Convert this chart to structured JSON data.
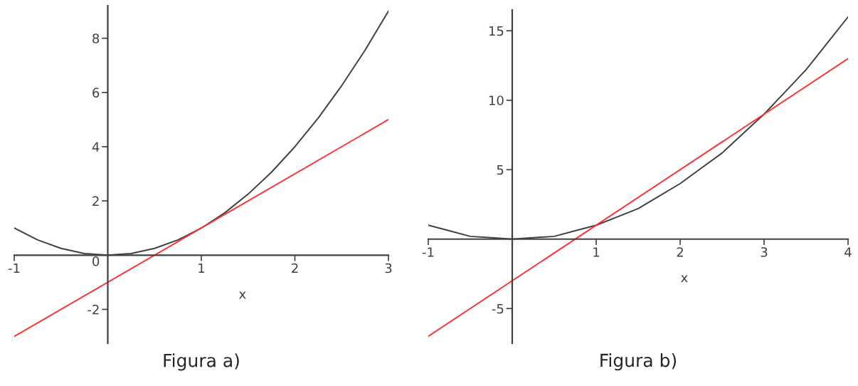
{
  "chart_data": [
    {
      "type": "line",
      "title": "Figura a)",
      "xlabel": "x",
      "xlim": [
        -1,
        3
      ],
      "ylim": [
        -3.25,
        9.2
      ],
      "xticks": [
        -1,
        1,
        2,
        3
      ],
      "yticks": [
        -2,
        0,
        2,
        4,
        6,
        8
      ],
      "grid": false,
      "legend": false,
      "series": [
        {
          "color": "#404040",
          "x": [
            -1,
            -0.75,
            -0.5,
            -0.25,
            0,
            0.25,
            0.5,
            0.75,
            1,
            1.25,
            1.5,
            1.75,
            2,
            2.25,
            2.5,
            2.75,
            3
          ],
          "values": [
            1,
            0.56,
            0.25,
            0.06,
            0,
            0.06,
            0.25,
            0.56,
            1,
            1.56,
            2.25,
            3.06,
            4,
            5.06,
            6.25,
            7.56,
            9
          ]
        },
        {
          "color": "#ff3030",
          "x": [
            -1,
            3
          ],
          "values": [
            -3,
            5
          ]
        }
      ]
    },
    {
      "type": "line",
      "title": "Figura b)",
      "xlabel": "x",
      "xlim": [
        -1,
        4
      ],
      "ylim": [
        -7.5,
        16.5
      ],
      "xticks": [
        -1,
        1,
        2,
        3,
        4
      ],
      "yticks": [
        -5,
        5,
        10,
        15
      ],
      "grid": false,
      "legend": false,
      "series": [
        {
          "color": "#404040",
          "x": [
            -1,
            -0.75,
            -0.5,
            -0.25,
            0,
            0.25,
            0.5,
            0.75,
            1,
            1.25,
            1.5,
            1.75,
            2,
            2.25,
            2.5,
            2.75,
            3,
            3.25,
            3.5,
            3.75,
            4
          ],
          "values": [
            1,
            0.6,
            0.2,
            0.1,
            0,
            0.1,
            0.2,
            0.6,
            1,
            1.6,
            2.2,
            3.1,
            4,
            5.1,
            6.2,
            7.6,
            9,
            10.6,
            12.2,
            14.1,
            16
          ]
        },
        {
          "color": "#ff3030",
          "x": [
            -1,
            4
          ],
          "values": [
            -7,
            13
          ]
        }
      ]
    }
  ]
}
